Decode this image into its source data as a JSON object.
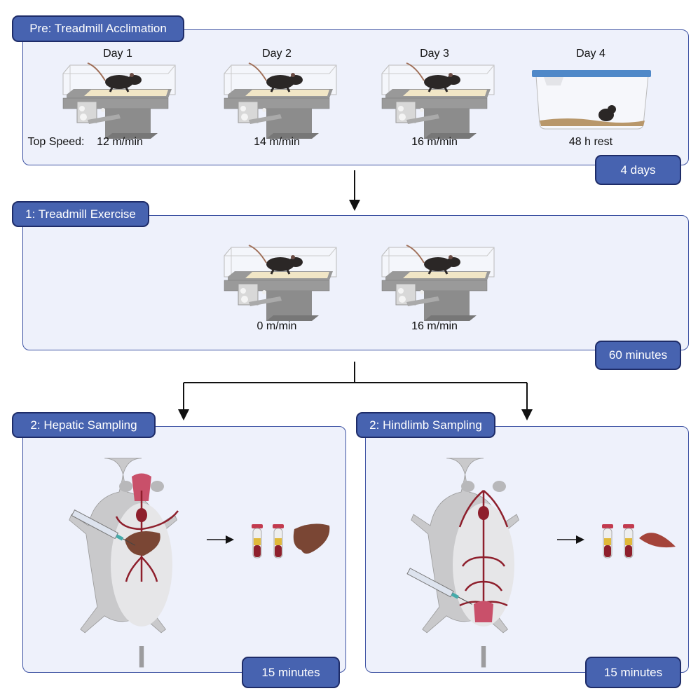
{
  "acclimation": {
    "title": "Pre: Treadmill Acclimation",
    "days": [
      "Day 1",
      "Day 2",
      "Day 3",
      "Day 4"
    ],
    "speed_label": "Top Speed:",
    "speeds": [
      "12 m/min",
      "14 m/min",
      "16 m/min",
      "48 h rest"
    ],
    "duration": "4 days"
  },
  "exercise": {
    "title": "1: Treadmill Exercise",
    "speeds": [
      "0 m/min",
      "16 m/min"
    ],
    "duration": "60 minutes"
  },
  "hepatic": {
    "title": "2: Hepatic Sampling",
    "duration": "15 minutes"
  },
  "hindlimb": {
    "title": "2: Hindlimb Sampling",
    "duration": "15 minutes"
  },
  "colors": {
    "panel_bg": "#eef1fb",
    "panel_border": "#3d52a3",
    "tag_fill": "#4763b0",
    "tag_border": "#1e2c68"
  }
}
